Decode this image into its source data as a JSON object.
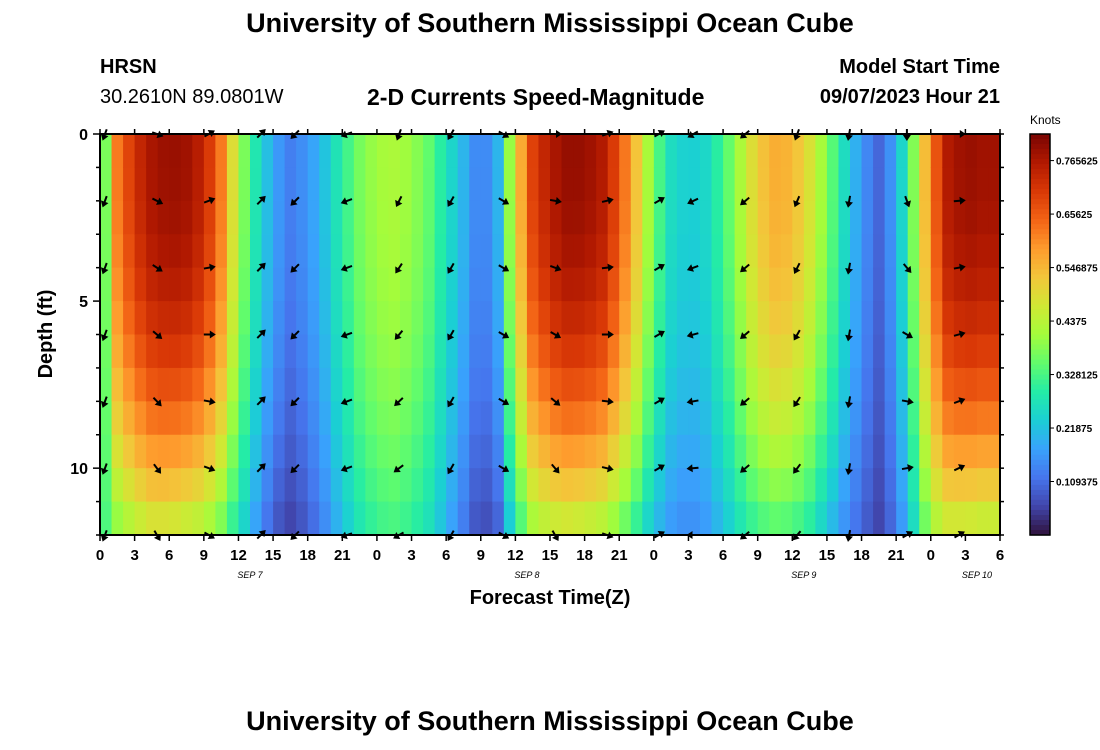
{
  "header": {
    "title": "University of Southern Mississippi Ocean Cube",
    "station": "HRSN",
    "coords": "30.2610N  89.0801W",
    "model_start_label": "Model Start Time",
    "model_start_value": "09/07/2023 Hour 21"
  },
  "footer_title": "University of Southern Mississippi Ocean Cube",
  "colors": {
    "colormap": [
      "#30123b",
      "#4145ab",
      "#4675ed",
      "#39a2fc",
      "#1bcfd4",
      "#24eca6",
      "#61fc6c",
      "#a4fc3b",
      "#d1e834",
      "#f3c63a",
      "#fe9b2d",
      "#f36315",
      "#d93806",
      "#b11901",
      "#7a0402"
    ]
  },
  "chart_data": {
    "type": "heatmap",
    "title": "2-D Currents Speed-Magnitude",
    "xlabel": "Forecast Time(Z)",
    "ylabel": "Depth (ft)",
    "x_ticks": [
      "0",
      "3",
      "6",
      "9",
      "12",
      "15",
      "18",
      "21",
      "0",
      "3",
      "6",
      "9",
      "12",
      "15",
      "18",
      "21",
      "0",
      "3",
      "6",
      "9",
      "12",
      "15",
      "18",
      "21",
      "0",
      "3",
      "6"
    ],
    "date_labels": [
      {
        "text": "SEP 7",
        "hour": 13
      },
      {
        "text": "SEP 8",
        "hour": 37
      },
      {
        "text": "SEP 9",
        "hour": 61
      },
      {
        "text": "SEP 10",
        "hour": 76
      }
    ],
    "y_ticks": [
      "0",
      "5",
      "10"
    ],
    "ylim": [
      0,
      12
    ],
    "xlim_hours": [
      0,
      78
    ],
    "colorbar": {
      "title": "Knots",
      "ticks": [
        "0.765625",
        "0.65625",
        "0.546875",
        "0.4375",
        "0.328125",
        "0.21875",
        "0.109375"
      ],
      "range": [
        0,
        0.82
      ]
    },
    "hours": [
      0,
      1,
      2,
      3,
      4,
      5,
      6,
      7,
      8,
      9,
      10,
      11,
      12,
      13,
      14,
      15,
      16,
      17,
      18,
      19,
      20,
      21,
      22,
      23,
      24,
      25,
      26,
      27,
      28,
      29,
      30,
      31,
      32,
      33,
      34,
      35,
      36,
      37,
      38,
      39,
      40,
      41,
      42,
      43,
      44,
      45,
      46,
      47,
      48,
      49,
      50,
      51,
      52,
      53,
      54,
      55,
      56,
      57,
      58,
      59,
      60,
      61,
      62,
      63,
      64,
      65,
      66,
      67,
      68,
      69,
      70,
      71,
      72,
      73,
      74,
      75,
      76,
      77
    ],
    "surface_speed_knots": [
      0.25,
      0.62,
      0.72,
      0.77,
      0.79,
      0.78,
      0.74,
      0.62,
      0.42,
      0.28,
      0.18,
      0.13,
      0.16,
      0.22,
      0.3,
      0.37,
      0.41,
      0.42,
      0.4,
      0.35,
      0.27,
      0.2,
      0.12,
      0.2,
      0.5,
      0.69,
      0.76,
      0.79,
      0.79,
      0.76,
      0.67,
      0.53,
      0.36,
      0.26,
      0.23,
      0.25,
      0.32,
      0.42,
      0.52,
      0.56,
      0.55,
      0.48,
      0.38,
      0.26,
      0.16,
      0.1,
      0.18,
      0.38,
      0.62,
      0.76,
      0.79,
      0.78
    ],
    "bottom_speed_knots": [
      0.3,
      0.4,
      0.45,
      0.48,
      0.48,
      0.46,
      0.44,
      0.38,
      0.28,
      0.18,
      0.09,
      0.06,
      0.09,
      0.15,
      0.22,
      0.28,
      0.32,
      0.33,
      0.31,
      0.27,
      0.2,
      0.13,
      0.06,
      0.1,
      0.3,
      0.42,
      0.46,
      0.47,
      0.46,
      0.44,
      0.39,
      0.31,
      0.22,
      0.17,
      0.15,
      0.17,
      0.22,
      0.28,
      0.33,
      0.35,
      0.34,
      0.3,
      0.23,
      0.16,
      0.1,
      0.06,
      0.12,
      0.26,
      0.42,
      0.47,
      0.47,
      0.46
    ],
    "surface_speed_hours": [
      0,
      1.5,
      3,
      4.5,
      6,
      7.5,
      9,
      10.5,
      12,
      13.5,
      15,
      16.5,
      18,
      19.5,
      21,
      22.5,
      24,
      25.5,
      27,
      28.5,
      30,
      31.5,
      33,
      34.5,
      36,
      37.5,
      39,
      40.5,
      42,
      43.5,
      45,
      46.5,
      48,
      49.5,
      51,
      52.5,
      54,
      55.5,
      57,
      58.5,
      60,
      61.5,
      63,
      64.5,
      66,
      67.5,
      69,
      70.5,
      72,
      73.5,
      75,
      76.5
    ],
    "arrows": {
      "hours": [
        0,
        4.5,
        9,
        13.5,
        16.5,
        21,
        25.5,
        30,
        34.5,
        39,
        43.5,
        48,
        51,
        55.5,
        60,
        64.5,
        69.5,
        74
      ],
      "depths_ft": [
        0,
        2,
        4,
        6,
        8,
        10,
        12
      ],
      "surface_direction_deg": [
        200,
        110,
        60,
        45,
        225,
        250,
        200,
        210,
        120,
        90,
        70,
        60,
        240,
        230,
        200,
        190,
        180,
        90
      ],
      "deep_direction_deg": [
        200,
        150,
        120,
        45,
        225,
        250,
        240,
        210,
        120,
        150,
        110,
        60,
        270,
        230,
        220,
        190,
        60,
        60
      ]
    }
  }
}
